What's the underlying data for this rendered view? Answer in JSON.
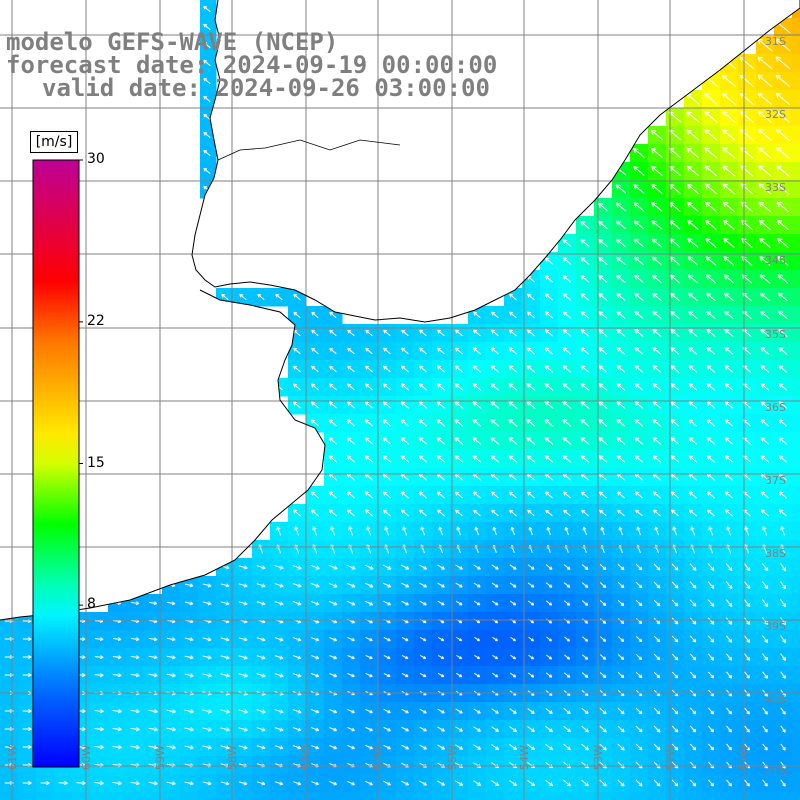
{
  "titles": {
    "line1": "modelo GEFS-WAVE (NCEP)",
    "line2": "forecast date: 2024-09-19 00:00:00",
    "line3": "valid date: 2024-09-26 03:00:00"
  },
  "colorbar": {
    "unit": "[m/s]",
    "ticks": [
      {
        "value": 30,
        "label": "30"
      },
      {
        "value": 22,
        "label": "22"
      },
      {
        "value": 15,
        "label": "15"
      },
      {
        "value": 8,
        "label": "8"
      }
    ],
    "min": 0,
    "max": 30
  },
  "map": {
    "variable": "wind speed",
    "grid": true,
    "lon_labels": [
      "61W",
      "60W",
      "59W",
      "58W",
      "57W",
      "56W",
      "55W",
      "54W",
      "53W",
      "52W",
      "51W"
    ],
    "lat_labels": [
      "31S",
      "32S",
      "33S",
      "34S",
      "35S",
      "36S",
      "37S",
      "38S",
      "39S",
      "40S",
      "41S"
    ],
    "colors": {
      "land": "#ffffff",
      "coastline": "#000000",
      "grid": "#808080",
      "arrows": "#ffffff",
      "title": "#7f7f7f"
    }
  }
}
